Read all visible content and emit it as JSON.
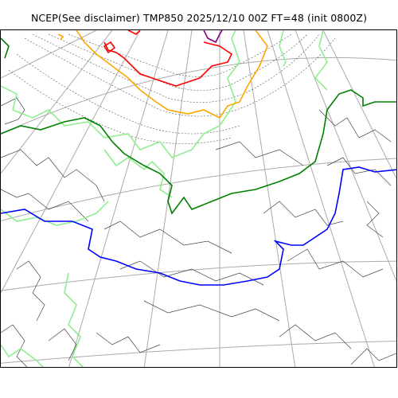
{
  "title": "NCEP(See disclaimer) TMP850 2025/12/10 00Z FT=48 (init 0800Z)",
  "map": {
    "projection": "polar-stereographic",
    "graticule": "grey meridians and parallels",
    "colors": {
      "graticule": "#aaaaaa",
      "coastline": "#444444",
      "thin_isotherm": "#555555",
      "contour_light_green": "#90ee90",
      "contour_green": "#008000",
      "contour_blue": "#0000ff",
      "contour_orange": "#ffa500",
      "contour_red": "#ff0000",
      "contour_purple": "#800080"
    },
    "highlighted_contours": [
      "orange",
      "red",
      "purple",
      "light-green",
      "green",
      "blue"
    ]
  }
}
